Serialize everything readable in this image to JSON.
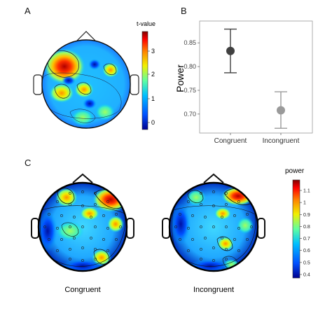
{
  "panels": {
    "a": "A",
    "b": "B",
    "c": "C"
  },
  "panel_a": {
    "colorbar_title": "t-value",
    "colorbar_ticks": [
      "3",
      "2",
      "1",
      "0"
    ]
  },
  "panel_c": {
    "colorbar_title": "power",
    "colorbar_ticks": [
      "1.1",
      "1",
      "0.9",
      "0.8",
      "0.7",
      "0.6",
      "0.5",
      "0.4"
    ],
    "map_labels": [
      "Congruent",
      "Incongruent"
    ]
  },
  "colors": {
    "scale": [
      "#00008f",
      "#0050ff",
      "#00c0ff",
      "#60ffa0",
      "#f0f000",
      "#ff8000",
      "#ff0000",
      "#800000"
    ],
    "point_congruent": "#404040",
    "point_incongruent": "#9a9a9a"
  },
  "chart_data": [
    {
      "type": "scatter",
      "panel": "B",
      "ylabel": "Power",
      "xlabel": "",
      "categories": [
        "Congruent",
        "Incongruent"
      ],
      "values": [
        0.833,
        0.708
      ],
      "error_low": [
        0.787,
        0.67
      ],
      "error_high": [
        0.879,
        0.747
      ],
      "yticks": [
        0.7,
        0.75,
        0.8,
        0.85
      ],
      "ytick_labels": [
        "0.70",
        "0.75",
        "0.80",
        "0.85"
      ],
      "ylim": [
        0.66,
        0.896
      ],
      "grid": false
    }
  ]
}
